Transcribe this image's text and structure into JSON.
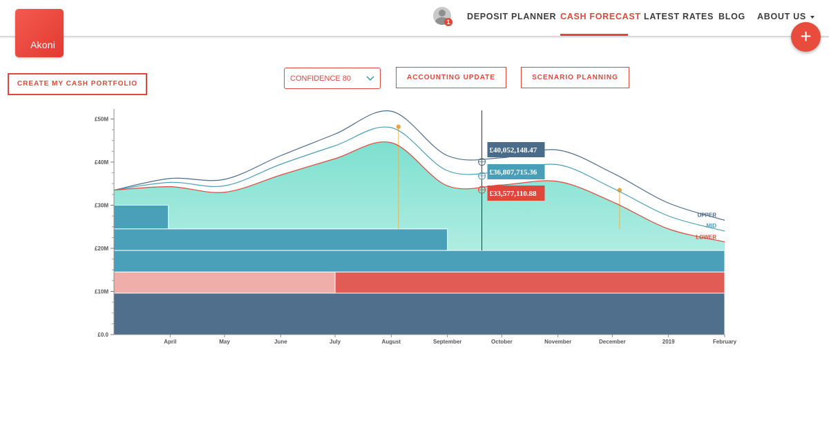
{
  "logo": {
    "text": "Akoni"
  },
  "nav": {
    "avatar_badge": "1",
    "items": [
      {
        "label": "DEPOSIT PLANNER",
        "active": false
      },
      {
        "label": "CASH FORECAST",
        "active": true
      },
      {
        "label": "LATEST RATES",
        "active": false
      },
      {
        "label": "BLOG",
        "active": false
      },
      {
        "label": "ABOUT US",
        "active": false
      }
    ]
  },
  "fab": {
    "label": "+"
  },
  "toolbar": {
    "portfolio_button": "CREATE MY CASH PORTFOLIO",
    "confidence_select": "CONFIDENCE 80",
    "accounting_button": "ACCOUNTING UPDATE",
    "scenario_button": "SCENARIO PLANNING"
  },
  "colors": {
    "accent": "#e0473b",
    "upper": "#4a6b8a",
    "mid": "#4a9fb8",
    "lower": "#e0473b",
    "teal_area": "#7de0cf",
    "deposit_blue": "#4aa0b8",
    "deposit_pink": "#efaeaa",
    "deposit_red": "#e05c55",
    "deposit_navy": "#506f8c"
  },
  "chart_data": {
    "type": "area",
    "y_unit": "£",
    "ylim": [
      0,
      52000000
    ],
    "y_ticks": [
      {
        "value": 0,
        "label": "£0.0"
      },
      {
        "value": 10000000,
        "label": "£10M"
      },
      {
        "value": 20000000,
        "label": "£20M"
      },
      {
        "value": 30000000,
        "label": "£30M"
      },
      {
        "value": 40000000,
        "label": "£40M"
      },
      {
        "value": 50000000,
        "label": "£50M"
      }
    ],
    "x_range": [
      "2018-03-01",
      "2019-02-01"
    ],
    "x_ticks": [
      {
        "date": "2018-04-01",
        "label": "April"
      },
      {
        "date": "2018-05-01",
        "label": "May"
      },
      {
        "date": "2018-06-01",
        "label": "June"
      },
      {
        "date": "2018-07-01",
        "label": "July"
      },
      {
        "date": "2018-08-01",
        "label": "August"
      },
      {
        "date": "2018-09-01",
        "label": "September"
      },
      {
        "date": "2018-10-01",
        "label": "October"
      },
      {
        "date": "2018-11-01",
        "label": "November"
      },
      {
        "date": "2018-12-01",
        "label": "December"
      },
      {
        "date": "2019-01-01",
        "label": "2019"
      },
      {
        "date": "2019-02-01",
        "label": "February"
      }
    ],
    "series": [
      {
        "name": "UPPER",
        "color": "#4a6b8a",
        "x": [
          "2018-03-01",
          "2018-04-01",
          "2018-05-01",
          "2018-06-01",
          "2018-07-01",
          "2018-08-01",
          "2018-09-01",
          "2018-10-01",
          "2018-11-01",
          "2018-12-01",
          "2019-01-01",
          "2019-02-01"
        ],
        "values": [
          33500000,
          36200000,
          36000000,
          41500000,
          46500000,
          51800000,
          41500000,
          41000000,
          42800000,
          37500000,
          30500000,
          26500000
        ]
      },
      {
        "name": "MID",
        "color": "#4a9fb8",
        "x": [
          "2018-03-01",
          "2018-04-01",
          "2018-05-01",
          "2018-06-01",
          "2018-07-01",
          "2018-08-01",
          "2018-09-01",
          "2018-10-01",
          "2018-11-01",
          "2018-12-01",
          "2019-01-01",
          "2019-02-01"
        ],
        "values": [
          33500000,
          35300000,
          34500000,
          39500000,
          43800000,
          48000000,
          38000000,
          37800000,
          39400000,
          34000000,
          27500000,
          24000000
        ]
      },
      {
        "name": "LOWER",
        "color": "#e0473b",
        "x": [
          "2018-03-01",
          "2018-04-01",
          "2018-05-01",
          "2018-06-01",
          "2018-07-01",
          "2018-08-01",
          "2018-09-01",
          "2018-10-01",
          "2018-11-01",
          "2018-12-01",
          "2019-01-01",
          "2019-02-01"
        ],
        "values": [
          33500000,
          34300000,
          33000000,
          37000000,
          40800000,
          44500000,
          34500000,
          34700000,
          35500000,
          30800000,
          24500000,
          21500000
        ]
      }
    ],
    "deposit_blocks": [
      {
        "start": "2018-03-01",
        "end": "2018-03-31",
        "bottom": 24500000,
        "top": 30000000,
        "color": "#4aa0b8"
      },
      {
        "start": "2018-03-01",
        "end": "2018-09-01",
        "bottom": 19500000,
        "top": 24500000,
        "color": "#4aa0b8"
      },
      {
        "start": "2018-03-01",
        "end": "2019-02-01",
        "bottom": 14500000,
        "top": 19500000,
        "color": "#4aa0b8"
      },
      {
        "start": "2018-03-01",
        "end": "2018-07-01",
        "bottom": 9600000,
        "top": 14500000,
        "color": "#efaeaa"
      },
      {
        "start": "2018-07-01",
        "end": "2019-02-01",
        "bottom": 9600000,
        "top": 14500000,
        "color": "#e05c55"
      },
      {
        "start": "2018-03-01",
        "end": "2019-02-01",
        "bottom": 0,
        "top": 9600000,
        "color": "#506f8c"
      }
    ],
    "event_markers": [
      {
        "date": "2018-08-05",
        "value": 48200000
      },
      {
        "date": "2018-12-05",
        "value": 33500000
      }
    ],
    "cursor": {
      "date": "2018-09-20",
      "labels": [
        {
          "series": "UPPER",
          "value": 40052148.47,
          "text": "£40,052,148.47"
        },
        {
          "series": "MID",
          "value": 36807715.36,
          "text": "£36,807,715.36"
        },
        {
          "series": "LOWER",
          "value": 33577110.88,
          "text": "£33,577,110.88"
        }
      ]
    },
    "legend": "right-end-of-lines",
    "grid": false
  }
}
